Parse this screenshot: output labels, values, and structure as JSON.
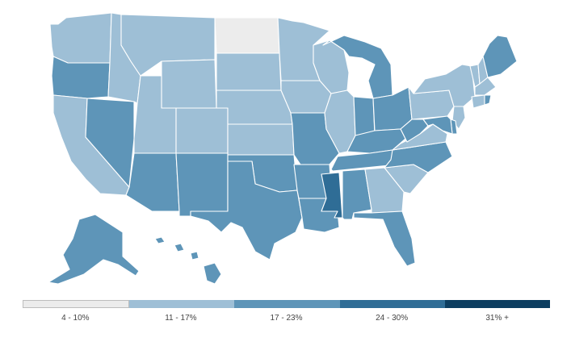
{
  "map": {
    "colors": {
      "4-10": "#ececec",
      "11-17": "#9ebfd6",
      "17-23": "#5e95b8",
      "24-30": "#2f6d96",
      "31+": "#0c3e60"
    },
    "states": [
      {
        "name": "WA",
        "bin": "11-17"
      },
      {
        "name": "OR",
        "bin": "17-23"
      },
      {
        "name": "CA",
        "bin": "11-17"
      },
      {
        "name": "NV",
        "bin": "17-23"
      },
      {
        "name": "ID",
        "bin": "11-17"
      },
      {
        "name": "MT",
        "bin": "11-17"
      },
      {
        "name": "WY",
        "bin": "11-17"
      },
      {
        "name": "UT",
        "bin": "11-17"
      },
      {
        "name": "AZ",
        "bin": "17-23"
      },
      {
        "name": "CO",
        "bin": "11-17"
      },
      {
        "name": "NM",
        "bin": "17-23"
      },
      {
        "name": "ND",
        "bin": "4-10"
      },
      {
        "name": "SD",
        "bin": "11-17"
      },
      {
        "name": "NE",
        "bin": "11-17"
      },
      {
        "name": "KS",
        "bin": "11-17"
      },
      {
        "name": "OK",
        "bin": "17-23"
      },
      {
        "name": "TX",
        "bin": "17-23"
      },
      {
        "name": "MN",
        "bin": "11-17"
      },
      {
        "name": "IA",
        "bin": "11-17"
      },
      {
        "name": "MO",
        "bin": "17-23"
      },
      {
        "name": "AR",
        "bin": "17-23"
      },
      {
        "name": "LA",
        "bin": "17-23"
      },
      {
        "name": "WI",
        "bin": "11-17"
      },
      {
        "name": "IL",
        "bin": "11-17"
      },
      {
        "name": "MI",
        "bin": "17-23"
      },
      {
        "name": "IN",
        "bin": "17-23"
      },
      {
        "name": "OH",
        "bin": "17-23"
      },
      {
        "name": "KY",
        "bin": "17-23"
      },
      {
        "name": "TN",
        "bin": "17-23"
      },
      {
        "name": "MS",
        "bin": "24-30"
      },
      {
        "name": "AL",
        "bin": "17-23"
      },
      {
        "name": "GA",
        "bin": "11-17"
      },
      {
        "name": "FL",
        "bin": "17-23"
      },
      {
        "name": "SC",
        "bin": "11-17"
      },
      {
        "name": "NC",
        "bin": "17-23"
      },
      {
        "name": "VA",
        "bin": "11-17"
      },
      {
        "name": "WV",
        "bin": "17-23"
      },
      {
        "name": "PA",
        "bin": "11-17"
      },
      {
        "name": "NY",
        "bin": "11-17"
      },
      {
        "name": "VT",
        "bin": "11-17"
      },
      {
        "name": "NH",
        "bin": "11-17"
      },
      {
        "name": "ME",
        "bin": "17-23"
      },
      {
        "name": "MA",
        "bin": "11-17"
      },
      {
        "name": "CT",
        "bin": "11-17"
      },
      {
        "name": "RI",
        "bin": "17-23"
      },
      {
        "name": "NJ",
        "bin": "11-17"
      },
      {
        "name": "DE",
        "bin": "17-23"
      },
      {
        "name": "MD",
        "bin": "17-23"
      },
      {
        "name": "AK",
        "bin": "17-23"
      },
      {
        "name": "HI",
        "bin": "17-23"
      }
    ]
  },
  "legend": {
    "items": [
      {
        "label": "4 - 10%",
        "color": "#ececec"
      },
      {
        "label": "11 - 17%",
        "color": "#9ebfd6"
      },
      {
        "label": "17 - 23%",
        "color": "#5e95b8"
      },
      {
        "label": "24 - 30%",
        "color": "#2f6d96"
      },
      {
        "label": "31% +",
        "color": "#0c3e60"
      }
    ]
  }
}
